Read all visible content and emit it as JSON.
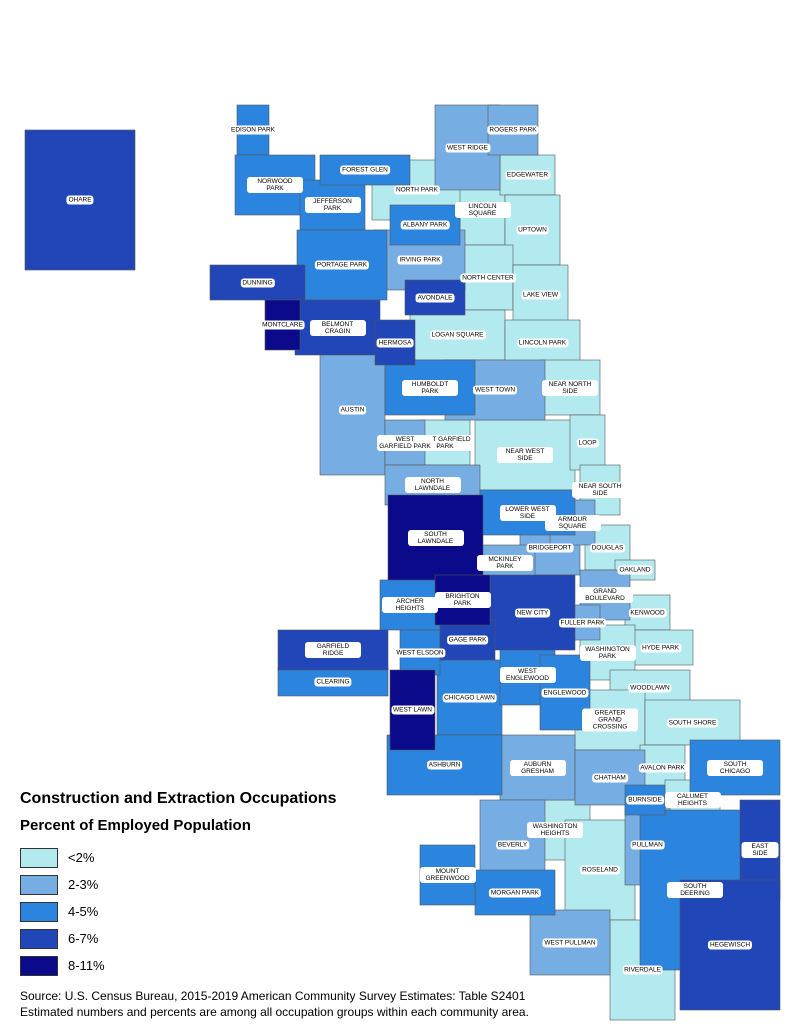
{
  "title": "Construction and Extraction Occupations",
  "subtitle": "Percent of Employed Population",
  "legend": [
    {
      "label": "<2%",
      "color": "#b3eaf0",
      "areas": [
        "NORTH PARK",
        "LINCOLN SQUARE",
        "EDGEWATER",
        "UPTOWN",
        "NORTH CENTER",
        "LAKE VIEW",
        "LOGAN SQUARE",
        "LINCOLN PARK",
        "NEAR NORTH SIDE",
        "NEAR WEST SIDE",
        "LOOP",
        "NEAR SOUTH SIDE",
        "DOUGLAS",
        "OAKLAND",
        "KENWOOD",
        "HYDE PARK",
        "WASHINGTON PARK",
        "WOODLAWN",
        "GREATER GRAND CROSSING",
        "SOUTH SHORE",
        "AVALON PARK",
        "CALUMET HEIGHTS",
        "WASHINGTON HEIGHTS",
        "ROSELAND",
        "RIVERDALE",
        "EAST GARFIELD PARK"
      ]
    },
    {
      "label": "2-3%",
      "color": "#76aee3",
      "areas": [
        "WEST RIDGE",
        "ROGERS PARK",
        "IRVING PARK",
        "WEST TOWN",
        "AUSTIN",
        "WEST GARFIELD PARK",
        "NORTH LAWNDALE",
        "BRIDGEPORT",
        "MCKINLEY PARK",
        "GRAND BOULEVARD",
        "FULLER PARK",
        "ARMOUR SQUARE",
        "AUBURN GRESHAM",
        "CHATHAM",
        "BEVERLY",
        "PULLMAN",
        "WEST PULLMAN"
      ]
    },
    {
      "label": "4-5%",
      "color": "#2b84dd",
      "areas": [
        "EDISON PARK",
        "NORWOOD PARK",
        "JEFFERSON PARK",
        "FOREST GLEN",
        "PORTAGE PARK",
        "ALBANY PARK",
        "HUMBOLDT PARK",
        "LOWER WEST SIDE",
        "ARCHER HEIGHTS",
        "CLEARING",
        "CHICAGO LAWN",
        "WEST ENGLEWOOD",
        "ENGLEWOOD",
        "ASHBURN",
        "SOUTH CHICAGO",
        "MORGAN PARK",
        "MOUNT GREENWOOD",
        "SOUTH DEERING",
        "BURNSIDE",
        "WEST ELSDON"
      ]
    },
    {
      "label": "6-7%",
      "color": "#2146b8",
      "areas": [
        "OHARE",
        "DUNNING",
        "BELMONT CRAGIN",
        "HERMOSA",
        "AVONDALE",
        "GARFIELD RIDGE",
        "NEW CITY",
        "GAGE PARK",
        "EAST SIDE",
        "HEGEWISCH"
      ]
    },
    {
      "label": "8-11%",
      "color": "#0a0a8a",
      "areas": [
        "MONTCLARE",
        "SOUTH LAWNDALE",
        "BRIGHTON PARK",
        "WEST LAWN"
      ]
    }
  ],
  "source": [
    "Source: U.S. Census Bureau, 2015-2019 American Community Survey Estimates: Table S2401",
    "Estimated numbers and percents are among all occupation groups within each community area."
  ]
}
